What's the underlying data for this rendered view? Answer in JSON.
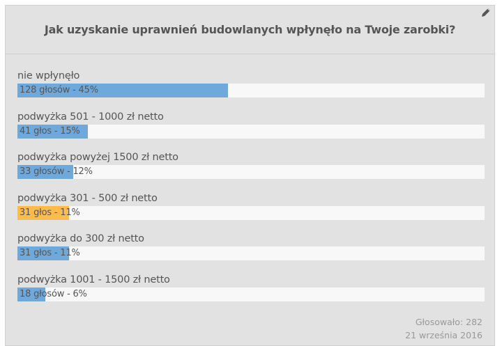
{
  "poll": {
    "title": "Jak uzyskanie uprawnień budowlanych wpłynęło na Twoje zarobki?",
    "edit_icon": "pencil-icon",
    "items": [
      {
        "label": "nie wpłynęło",
        "value_text": "128 głosów - 45%",
        "percent": 45,
        "color": "#6fa9dc"
      },
      {
        "label": "podwyżka 501 - 1000 zł netto",
        "value_text": "41 głos - 15%",
        "percent": 15,
        "color": "#6fa9dc"
      },
      {
        "label": "podwyżka powyżej 1500 zł netto",
        "value_text": "33 głosów - 12%",
        "percent": 12,
        "color": "#6fa9dc"
      },
      {
        "label": "podwyżka 301 - 500 zł netto",
        "value_text": "31 głos - 11%",
        "percent": 11,
        "color": "#fbbc4c"
      },
      {
        "label": "podwyżka do 300 zł netto",
        "value_text": "31 głos - 11%",
        "percent": 11,
        "color": "#6fa9dc"
      },
      {
        "label": "podwyżka 1001 - 1500 zł netto",
        "value_text": "18 głosów - 6%",
        "percent": 6,
        "color": "#6fa9dc"
      }
    ],
    "footer": {
      "votes": "Głosowało: 282",
      "date": "21 września 2016"
    }
  },
  "chart_data": {
    "type": "bar",
    "orientation": "horizontal",
    "title": "Jak uzyskanie uprawnień budowlanych wpłynęło na Twoje zarobki?",
    "categories": [
      "nie wpłynęło",
      "podwyżka 501 - 1000 zł netto",
      "podwyżka powyżej 1500 zł netto",
      "podwyżka 301 - 500 zł netto",
      "podwyżka do 300 zł netto",
      "podwyżka 1001 - 1500 zł netto"
    ],
    "series": [
      {
        "name": "głosy",
        "values": [
          128,
          41,
          33,
          31,
          31,
          18
        ]
      },
      {
        "name": "procent",
        "values": [
          45,
          15,
          12,
          11,
          11,
          6
        ]
      }
    ],
    "highlighted_category": "podwyżka 301 - 500 zł netto",
    "total_votes": 282,
    "date": "21 września 2016",
    "xlim": [
      0,
      100
    ],
    "grid": false,
    "legend": "none"
  }
}
